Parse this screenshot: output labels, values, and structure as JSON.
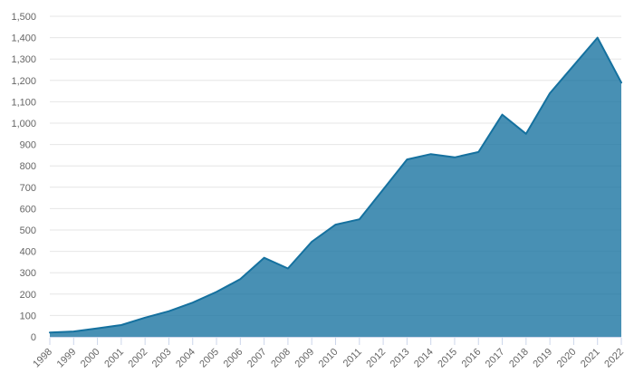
{
  "chart_data": {
    "type": "area",
    "title": "",
    "xlabel": "",
    "ylabel": "",
    "categories": [
      "1998",
      "1999",
      "2000",
      "2001",
      "2002",
      "2003",
      "2004",
      "2005",
      "2006",
      "2007",
      "2008",
      "2009",
      "2010",
      "2011",
      "2012",
      "2013",
      "2014",
      "2015",
      "2016",
      "2017",
      "2018",
      "2019",
      "2020",
      "2021",
      "2022"
    ],
    "values": [
      20,
      25,
      40,
      55,
      90,
      120,
      160,
      210,
      270,
      370,
      320,
      445,
      525,
      550,
      690,
      830,
      855,
      840,
      865,
      1040,
      950,
      1140,
      1270,
      1400,
      1190
    ],
    "ylim": [
      0,
      1500
    ],
    "ytick_step": 100,
    "ytick_labels": [
      "0",
      "100",
      "200",
      "300",
      "400",
      "500",
      "600",
      "700",
      "800",
      "900",
      "1,000",
      "1,100",
      "1,200",
      "1,300",
      "1,400",
      "1,500"
    ],
    "grid": true,
    "legend": false,
    "x_label_rotation": -45,
    "colors": {
      "series": "#15719f",
      "fill_opacity": 0.78,
      "gridline": "#e6e6e6",
      "axis_line": "#ccd6eb",
      "tick": "#ccd6eb",
      "label": "#666666",
      "background": "#ffffff"
    }
  }
}
